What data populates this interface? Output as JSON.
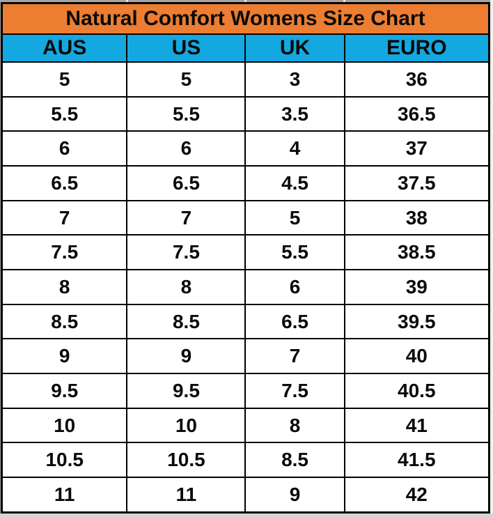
{
  "chart_data": {
    "type": "table",
    "title": "Natural Comfort Womens Size Chart",
    "columns": [
      "AUS",
      "US",
      "UK",
      "EURO"
    ],
    "rows": [
      [
        "5",
        "5",
        "3",
        "36"
      ],
      [
        "5.5",
        "5.5",
        "3.5",
        "36.5"
      ],
      [
        "6",
        "6",
        "4",
        "37"
      ],
      [
        "6.5",
        "6.5",
        "4.5",
        "37.5"
      ],
      [
        "7",
        "7",
        "5",
        "38"
      ],
      [
        "7.5",
        "7.5",
        "5.5",
        "38.5"
      ],
      [
        "8",
        "8",
        "6",
        "39"
      ],
      [
        "8.5",
        "8.5",
        "6.5",
        "39.5"
      ],
      [
        "9",
        "9",
        "7",
        "40"
      ],
      [
        "9.5",
        "9.5",
        "7.5",
        "40.5"
      ],
      [
        "10",
        "10",
        "8",
        "41"
      ],
      [
        "10.5",
        "10.5",
        "8.5",
        "41.5"
      ],
      [
        "11",
        "11",
        "9",
        "42"
      ]
    ],
    "layout_hints": {
      "title_row_merged": true,
      "grid": true,
      "column_width_pct": [
        25.7,
        24.3,
        20.3,
        29.7
      ]
    },
    "colors": {
      "title_bg": "#ed7d31",
      "header_bg": "#14a8e1",
      "border": "#000000",
      "text": "#0a0a0a",
      "row_bg": "#ffffff"
    }
  }
}
